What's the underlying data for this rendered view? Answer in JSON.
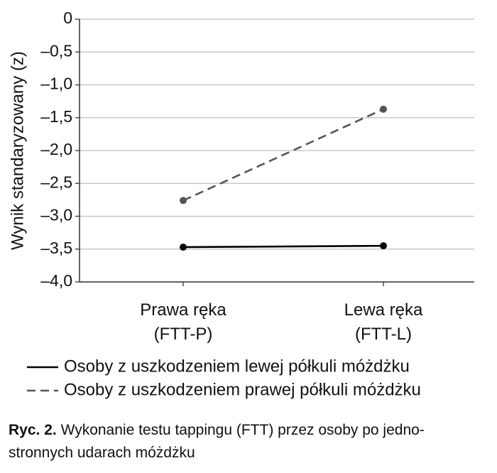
{
  "chart_data": {
    "type": "line",
    "ylabel": "Wynik standaryzowany (z)",
    "categories": [
      "Prawa ręka\n(FTT-P)",
      "Lewa ręka\n(FTT-L)"
    ],
    "series": [
      {
        "name": "Osoby z uszkodzeniem lewej półkuli móżdżku",
        "color": "#000000",
        "dash": false,
        "values": [
          -3.47,
          -3.45
        ]
      },
      {
        "name": "Osoby z uszkodzeniem prawej półkuli móżdżku",
        "color": "#555555",
        "dash": true,
        "values": [
          -2.76,
          -1.37
        ]
      }
    ],
    "ylim": [
      -4,
      0
    ],
    "yticks": [
      {
        "value": -4,
        "label": "–4,0"
      },
      {
        "value": -3.5,
        "label": "–3,5"
      },
      {
        "value": -3,
        "label": "–3,0"
      },
      {
        "value": -2.5,
        "label": "–2,5"
      },
      {
        "value": -2,
        "label": "–2,0"
      },
      {
        "value": -1.5,
        "label": "–1,5"
      },
      {
        "value": -1,
        "label": "–1,0"
      },
      {
        "value": -0.5,
        "label": "–0,5"
      },
      0
    ],
    "grid": true,
    "caption_label": "Ryc. 2.",
    "caption": "Wykonanie testu tappingu (FTT) przez osoby po jedno-\nstronnych udarach móżdżku"
  }
}
